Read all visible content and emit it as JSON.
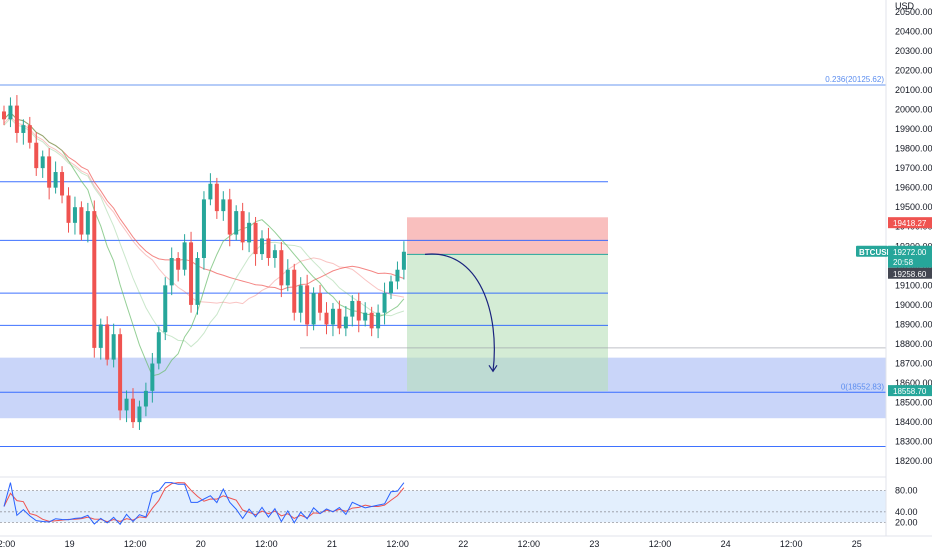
{
  "symbol": "BTCUSD",
  "currency": "USD",
  "colors": {
    "up": "#26a69a",
    "down": "#ef5350",
    "hline": "#2962ff",
    "fib": "#5b8def",
    "stop_zone": "#f7a9a8",
    "target_zone": "#b8e0b9",
    "demand_zone": "#b7c7f7",
    "ma_fast": "#66bb6a",
    "ma_slow": "#ef5350",
    "rsi_band": "#e3effd",
    "rsi_line": "#2962ff",
    "rsi_signal": "#ef5350",
    "arrow": "#1a237e"
  },
  "price_axis": {
    "ticks": [
      "20500.00",
      "20400.00",
      "20300.00",
      "20200.00",
      "20100.00",
      "20000.00",
      "19900.00",
      "19800.00",
      "19700.00",
      "19600.00",
      "19500.00",
      "19400.00",
      "19300.00",
      "19200.00",
      "19100.00",
      "19000.00",
      "18900.00",
      "18800.00",
      "18700.00",
      "18600.00",
      "18500.00",
      "18400.00",
      "18300.00",
      "18200.00"
    ],
    "ymax": 20540,
    "ymin": 18155
  },
  "time_axis": {
    "labels": [
      "12:00",
      "19",
      "12:00",
      "20",
      "12:00",
      "21",
      "12:00",
      "22",
      "12:00",
      "23",
      "12:00",
      "24",
      "12:00",
      "25"
    ]
  },
  "labels": {
    "fib_top": "0.236(20125.62)",
    "fib_bottom": "0(18552.83)",
    "stop_price": "19418.27",
    "current_price": "19272.00",
    "countdown": "20:58",
    "entry_price": "19258.60",
    "target_price": "18558.70"
  },
  "levels": {
    "fib_top": 20125.62,
    "res1": 19630,
    "res2": 19330,
    "res3": 19060,
    "res4": 18895,
    "demand_top": 18730,
    "demand_bottom": 18420,
    "fib_bottom": 18552.83,
    "sup_low": 18275,
    "grey_line": 18780
  },
  "trade": {
    "entry": 19258.6,
    "stop": 19418.27,
    "target": 18558.7,
    "arrow_target": 18660
  },
  "rsi": {
    "ticks": [
      "80.00",
      "40.00",
      "20.00"
    ],
    "levels": [
      80,
      40,
      20
    ],
    "band": [
      20,
      80
    ]
  },
  "chart_data": {
    "type": "candlestick",
    "interval": "1h",
    "series_close": [
      19950,
      20020,
      19880,
      19920,
      19830,
      19700,
      19760,
      19600,
      19680,
      19560,
      19420,
      19500,
      19360,
      19480,
      18780,
      18900,
      18720,
      18850,
      18460,
      18520,
      18400,
      18480,
      18560,
      18700,
      18860,
      19100,
      19240,
      19180,
      19320,
      19000,
      19240,
      19540,
      19620,
      19480,
      19540,
      19360,
      19480,
      19320,
      19420,
      19260,
      19340,
      19240,
      19280,
      19100,
      19180,
      18960,
      19100,
      18900,
      19060,
      18960,
      18900,
      18980,
      18880,
      18940,
      19020,
      18920,
      18960,
      18880,
      18960,
      19060,
      19120,
      19180,
      19272
    ]
  }
}
